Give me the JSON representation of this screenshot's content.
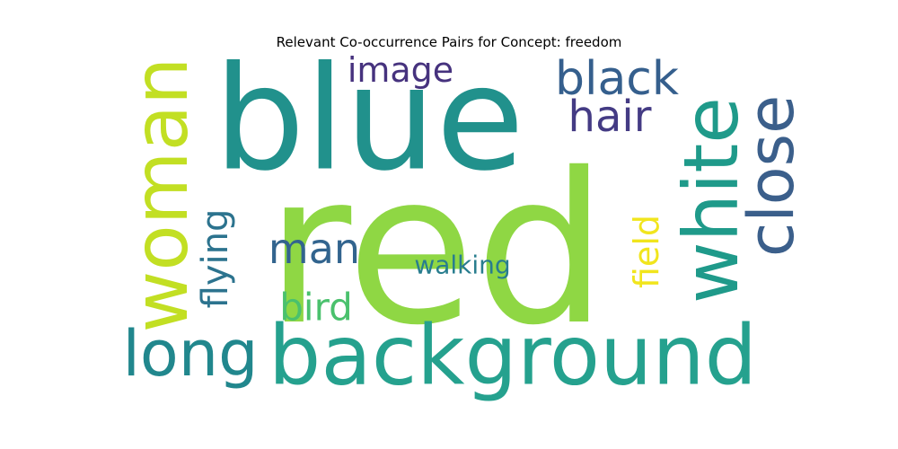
{
  "chart_data": {
    "type": "wordcloud",
    "title": "Relevant Co-occurrence Pairs for Concept: freedom",
    "colormap": "viridis",
    "background": "#ffffff",
    "words": [
      {
        "text": "red",
        "color": "#8fd744",
        "orientation": "horizontal"
      },
      {
        "text": "blue",
        "color": "#21918c",
        "orientation": "horizontal"
      },
      {
        "text": "background",
        "color": "#25a18e",
        "orientation": "horizontal"
      },
      {
        "text": "woman",
        "color": "#c2df23",
        "orientation": "vertical"
      },
      {
        "text": "white",
        "color": "#1f9a8a",
        "orientation": "vertical"
      },
      {
        "text": "close",
        "color": "#3b5f8b",
        "orientation": "vertical"
      },
      {
        "text": "long",
        "color": "#21878d",
        "orientation": "horizontal"
      },
      {
        "text": "black",
        "color": "#355f8d",
        "orientation": "horizontal"
      },
      {
        "text": "hair",
        "color": "#443b84",
        "orientation": "horizontal"
      },
      {
        "text": "man",
        "color": "#32648e",
        "orientation": "horizontal"
      },
      {
        "text": "image",
        "color": "#46327e",
        "orientation": "horizontal"
      },
      {
        "text": "flying",
        "color": "#2c738e",
        "orientation": "vertical"
      },
      {
        "text": "bird",
        "color": "#4ac16d",
        "orientation": "horizontal"
      },
      {
        "text": "field",
        "color": "#f1e51d",
        "orientation": "vertical"
      },
      {
        "text": "walking",
        "color": "#287d8e",
        "orientation": "horizontal"
      }
    ]
  }
}
